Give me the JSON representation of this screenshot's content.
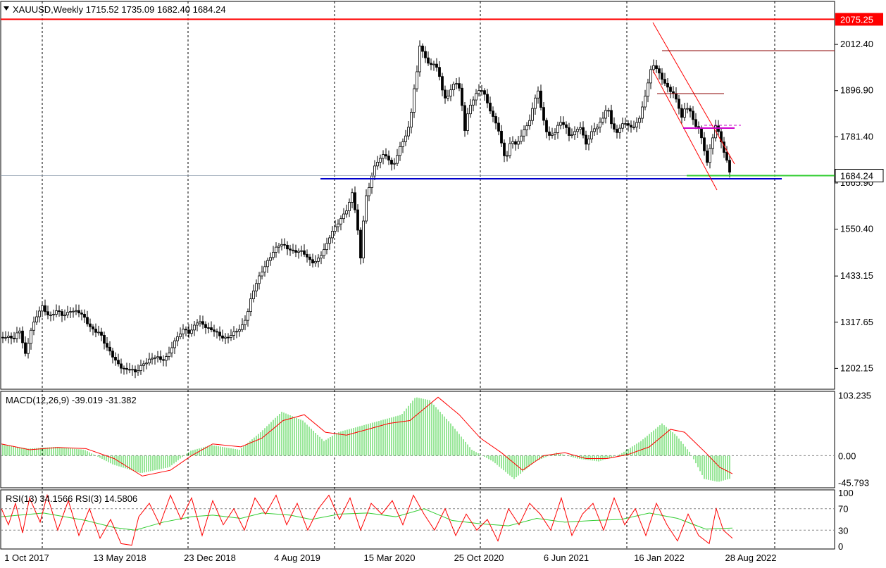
{
  "header": {
    "symbol_line": "XAUUSD,Weekly  1715.52 1735.09 1682.40 1684.24"
  },
  "macd_label": "MACD(12,26,9) -39.019 -31.382",
  "rsi_label": "RSI(13) 34.1566  RSI(3) 14.5806",
  "colors": {
    "bull_candle": "#006400",
    "bear_candle": "#8b0000",
    "resistance": "#ff0000",
    "support": "#0000cd",
    "current_price": "#32cd32",
    "macd_hist": "#32cd32",
    "macd_signal": "#ff0000",
    "rsi13": "#32cd32",
    "rsi3": "#ff0000",
    "channel": "#ff0000",
    "level_dark": "#8b0000",
    "magenta": "#cc00cc"
  },
  "chart_data": [
    {
      "type": "candlestick",
      "title": "XAUUSD,Weekly",
      "ohlc_last": {
        "open": 1715.52,
        "high": 1735.09,
        "low": 1682.4,
        "close": 1684.24
      },
      "y_ticks": [
        "2012.40",
        "1896.90",
        "1781.40",
        "1665.90",
        "1550.40",
        "1433.15",
        "1317.65",
        "1202.15"
      ],
      "ylim": [
        1150,
        2120
      ],
      "x_ticks": [
        "1 Oct 2017",
        "13 May 2018",
        "23 Dec 2018",
        "4 Aug 2019",
        "15 Mar 2020",
        "25 Oct 2020",
        "6 Jun 2021",
        "16 Jan 2022",
        "28 Aug 2022"
      ],
      "price_path": [
        [
          0,
          1280
        ],
        [
          10,
          1285
        ],
        [
          20,
          1275
        ],
        [
          28,
          1295
        ],
        [
          36,
          1240
        ],
        [
          44,
          1300
        ],
        [
          52,
          1330
        ],
        [
          60,
          1355
        ],
        [
          70,
          1335
        ],
        [
          80,
          1345
        ],
        [
          90,
          1330
        ],
        [
          100,
          1350
        ],
        [
          110,
          1345
        ],
        [
          118,
          1330
        ],
        [
          126,
          1310
        ],
        [
          134,
          1300
        ],
        [
          142,
          1290
        ],
        [
          150,
          1255
        ],
        [
          158,
          1240
        ],
        [
          166,
          1220
        ],
        [
          174,
          1200
        ],
        [
          180,
          1195
        ],
        [
          186,
          1200
        ],
        [
          192,
          1195
        ],
        [
          200,
          1210
        ],
        [
          208,
          1215
        ],
        [
          216,
          1225
        ],
        [
          222,
          1235
        ],
        [
          230,
          1225
        ],
        [
          238,
          1230
        ],
        [
          246,
          1260
        ],
        [
          254,
          1290
        ],
        [
          262,
          1305
        ],
        [
          270,
          1285
        ],
        [
          278,
          1315
        ],
        [
          286,
          1320
        ],
        [
          294,
          1305
        ],
        [
          302,
          1295
        ],
        [
          310,
          1285
        ],
        [
          318,
          1280
        ],
        [
          326,
          1285
        ],
        [
          334,
          1290
        ],
        [
          342,
          1300
        ],
        [
          350,
          1335
        ],
        [
          358,
          1390
        ],
        [
          366,
          1420
        ],
        [
          374,
          1450
        ],
        [
          382,
          1480
        ],
        [
          390,
          1500
        ],
        [
          398,
          1510
        ],
        [
          406,
          1505
        ],
        [
          414,
          1500
        ],
        [
          422,
          1495
        ],
        [
          430,
          1490
        ],
        [
          438,
          1475
        ],
        [
          446,
          1470
        ],
        [
          454,
          1480
        ],
        [
          462,
          1500
        ],
        [
          470,
          1540
        ],
        [
          478,
          1565
        ],
        [
          486,
          1580
        ],
        [
          494,
          1600
        ],
        [
          500,
          1640
        ],
        [
          506,
          1585
        ],
        [
          512,
          1480
        ],
        [
          518,
          1620
        ],
        [
          524,
          1650
        ],
        [
          530,
          1700
        ],
        [
          536,
          1720
        ],
        [
          542,
          1740
        ],
        [
          550,
          1730
        ],
        [
          558,
          1700
        ],
        [
          566,
          1750
        ],
        [
          574,
          1780
        ],
        [
          582,
          1810
        ],
        [
          588,
          1900
        ],
        [
          593,
          1950
        ],
        [
          597,
          2030
        ],
        [
          600,
          2000
        ],
        [
          606,
          1970
        ],
        [
          614,
          1960
        ],
        [
          622,
          1950
        ],
        [
          630,
          1880
        ],
        [
          638,
          1890
        ],
        [
          646,
          1920
        ],
        [
          654,
          1890
        ],
        [
          660,
          1800
        ],
        [
          666,
          1860
        ],
        [
          674,
          1880
        ],
        [
          682,
          1900
        ],
        [
          690,
          1880
        ],
        [
          698,
          1840
        ],
        [
          706,
          1810
        ],
        [
          712,
          1760
        ],
        [
          718,
          1720
        ],
        [
          726,
          1780
        ],
        [
          734,
          1760
        ],
        [
          742,
          1790
        ],
        [
          750,
          1810
        ],
        [
          758,
          1870
        ],
        [
          764,
          1900
        ],
        [
          770,
          1830
        ],
        [
          778,
          1780
        ],
        [
          786,
          1790
        ],
        [
          794,
          1820
        ],
        [
          802,
          1810
        ],
        [
          808,
          1780
        ],
        [
          816,
          1795
        ],
        [
          824,
          1810
        ],
        [
          832,
          1760
        ],
        [
          840,
          1790
        ],
        [
          848,
          1810
        ],
        [
          856,
          1830
        ],
        [
          862,
          1860
        ],
        [
          868,
          1810
        ],
        [
          876,
          1790
        ],
        [
          884,
          1820
        ],
        [
          892,
          1810
        ],
        [
          900,
          1800
        ],
        [
          908,
          1830
        ],
        [
          914,
          1870
        ],
        [
          920,
          1920
        ],
        [
          926,
          1960
        ],
        [
          932,
          1950
        ],
        [
          938,
          1930
        ],
        [
          944,
          1920
        ],
        [
          950,
          1900
        ],
        [
          956,
          1890
        ],
        [
          962,
          1860
        ],
        [
          968,
          1830
        ],
        [
          974,
          1860
        ],
        [
          980,
          1850
        ],
        [
          986,
          1810
        ],
        [
          992,
          1800
        ],
        [
          998,
          1760
        ],
        [
          1004,
          1720
        ],
        [
          1010,
          1770
        ],
        [
          1016,
          1810
        ],
        [
          1022,
          1780
        ],
        [
          1028,
          1740
        ],
        [
          1034,
          1710
        ],
        [
          1038,
          1684
        ]
      ],
      "annotations": {
        "resistance_level": "2075.25",
        "current_price": "1684.24"
      }
    },
    {
      "type": "bar+line",
      "title": "MACD(12,26,9) -39.019 -31.382",
      "y_ticks": [
        "103.235",
        "0.00",
        "-45.793"
      ],
      "ylim": [
        -55,
        110
      ],
      "hist_path": [
        [
          0,
          20
        ],
        [
          40,
          12
        ],
        [
          80,
          15
        ],
        [
          120,
          10
        ],
        [
          160,
          -15
        ],
        [
          200,
          -30
        ],
        [
          240,
          -20
        ],
        [
          270,
          8
        ],
        [
          300,
          18
        ],
        [
          340,
          10
        ],
        [
          370,
          40
        ],
        [
          400,
          75
        ],
        [
          430,
          60
        ],
        [
          460,
          25
        ],
        [
          480,
          40
        ],
        [
          510,
          50
        ],
        [
          540,
          60
        ],
        [
          570,
          70
        ],
        [
          590,
          100
        ],
        [
          610,
          95
        ],
        [
          640,
          55
        ],
        [
          670,
          10
        ],
        [
          700,
          -10
        ],
        [
          730,
          -40
        ],
        [
          760,
          -10
        ],
        [
          790,
          5
        ],
        [
          820,
          -5
        ],
        [
          850,
          -10
        ],
        [
          880,
          2
        ],
        [
          910,
          25
        ],
        [
          940,
          55
        ],
        [
          960,
          35
        ],
        [
          980,
          5
        ],
        [
          1000,
          -40
        ],
        [
          1020,
          -45
        ],
        [
          1038,
          -39
        ]
      ],
      "signal_path": [
        [
          0,
          20
        ],
        [
          40,
          10
        ],
        [
          80,
          14
        ],
        [
          120,
          12
        ],
        [
          160,
          -5
        ],
        [
          200,
          -35
        ],
        [
          240,
          -25
        ],
        [
          270,
          0
        ],
        [
          300,
          20
        ],
        [
          340,
          15
        ],
        [
          370,
          30
        ],
        [
          400,
          60
        ],
        [
          430,
          70
        ],
        [
          460,
          40
        ],
        [
          490,
          35
        ],
        [
          520,
          45
        ],
        [
          550,
          55
        ],
        [
          580,
          60
        ],
        [
          600,
          80
        ],
        [
          620,
          100
        ],
        [
          650,
          70
        ],
        [
          680,
          30
        ],
        [
          710,
          5
        ],
        [
          740,
          -25
        ],
        [
          770,
          0
        ],
        [
          800,
          5
        ],
        [
          830,
          -5
        ],
        [
          860,
          -5
        ],
        [
          890,
          2
        ],
        [
          920,
          15
        ],
        [
          950,
          45
        ],
        [
          970,
          40
        ],
        [
          1000,
          5
        ],
        [
          1020,
          -20
        ],
        [
          1038,
          -31
        ]
      ]
    },
    {
      "type": "line",
      "title": "RSI(13) 34.1566  RSI(3) 14.5806",
      "y_ticks": [
        "100",
        "70",
        "30",
        "0"
      ],
      "ylim": [
        -5,
        105
      ],
      "rsi13_path": [
        [
          0,
          55
        ],
        [
          60,
          62
        ],
        [
          120,
          48
        ],
        [
          160,
          35
        ],
        [
          190,
          30
        ],
        [
          230,
          45
        ],
        [
          270,
          55
        ],
        [
          300,
          58
        ],
        [
          340,
          52
        ],
        [
          370,
          62
        ],
        [
          410,
          58
        ],
        [
          440,
          50
        ],
        [
          480,
          60
        ],
        [
          520,
          62
        ],
        [
          560,
          55
        ],
        [
          600,
          70
        ],
        [
          640,
          48
        ],
        [
          680,
          42
        ],
        [
          720,
          38
        ],
        [
          760,
          52
        ],
        [
          800,
          45
        ],
        [
          840,
          48
        ],
        [
          880,
          50
        ],
        [
          920,
          62
        ],
        [
          960,
          52
        ],
        [
          1000,
          32
        ],
        [
          1038,
          34
        ]
      ],
      "rsi3_path": [
        [
          0,
          70
        ],
        [
          10,
          40
        ],
        [
          20,
          80
        ],
        [
          30,
          25
        ],
        [
          40,
          90
        ],
        [
          55,
          45
        ],
        [
          65,
          95
        ],
        [
          80,
          30
        ],
        [
          95,
          85
        ],
        [
          110,
          20
        ],
        [
          125,
          70
        ],
        [
          140,
          15
        ],
        [
          155,
          50
        ],
        [
          170,
          5
        ],
        [
          185,
          2
        ],
        [
          195,
          55
        ],
        [
          210,
          80
        ],
        [
          225,
          40
        ],
        [
          240,
          95
        ],
        [
          255,
          50
        ],
        [
          270,
          90
        ],
        [
          285,
          20
        ],
        [
          300,
          85
        ],
        [
          315,
          40
        ],
        [
          330,
          70
        ],
        [
          345,
          30
        ],
        [
          360,
          90
        ],
        [
          375,
          60
        ],
        [
          390,
          95
        ],
        [
          405,
          40
        ],
        [
          420,
          80
        ],
        [
          435,
          30
        ],
        [
          450,
          70
        ],
        [
          465,
          95
        ],
        [
          480,
          50
        ],
        [
          495,
          90
        ],
        [
          510,
          30
        ],
        [
          525,
          80
        ],
        [
          540,
          60
        ],
        [
          555,
          85
        ],
        [
          570,
          40
        ],
        [
          585,
          95
        ],
        [
          600,
          60
        ],
        [
          615,
          30
        ],
        [
          630,
          70
        ],
        [
          645,
          20
        ],
        [
          660,
          60
        ],
        [
          675,
          30
        ],
        [
          690,
          50
        ],
        [
          705,
          10
        ],
        [
          720,
          70
        ],
        [
          735,
          40
        ],
        [
          750,
          80
        ],
        [
          765,
          60
        ],
        [
          780,
          30
        ],
        [
          795,
          90
        ],
        [
          810,
          20
        ],
        [
          825,
          60
        ],
        [
          840,
          80
        ],
        [
          855,
          30
        ],
        [
          870,
          90
        ],
        [
          885,
          40
        ],
        [
          900,
          70
        ],
        [
          915,
          20
        ],
        [
          930,
          80
        ],
        [
          945,
          40
        ],
        [
          960,
          10
        ],
        [
          975,
          60
        ],
        [
          990,
          20
        ],
        [
          1005,
          5
        ],
        [
          1015,
          70
        ],
        [
          1025,
          30
        ],
        [
          1038,
          15
        ]
      ]
    }
  ]
}
